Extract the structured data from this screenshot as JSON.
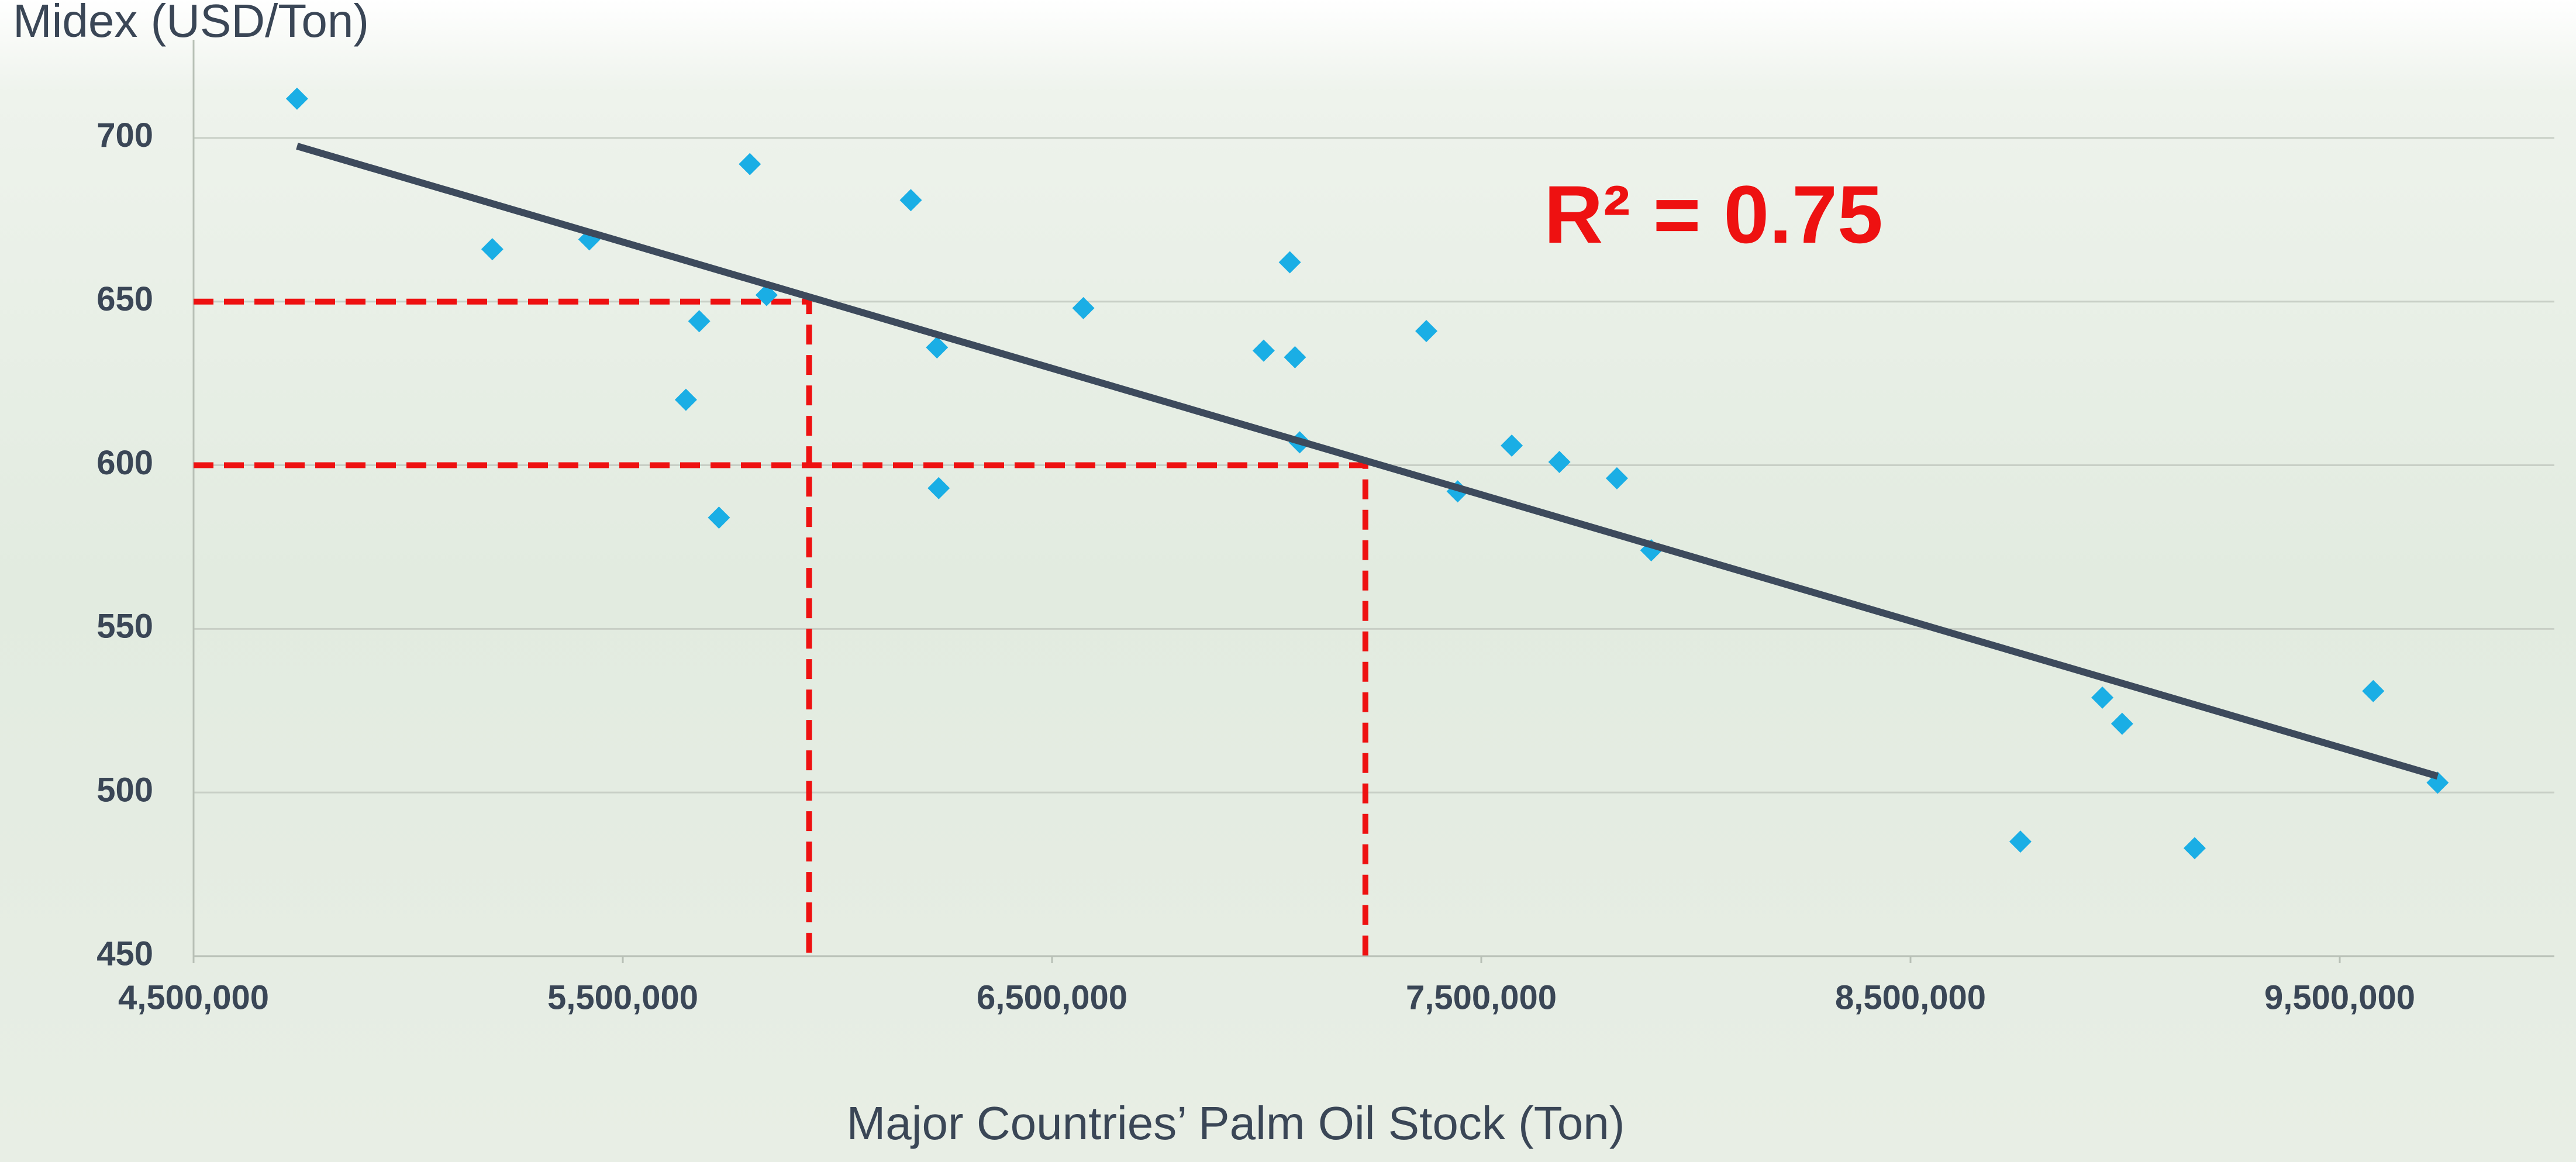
{
  "chart_data": {
    "type": "scatter",
    "y_axis_title": "Midex (USD/Ton)",
    "x_axis_title": "Major Countries’ Palm Oil Stock (Ton)",
    "annotation": "R² = 0.75",
    "x": [
      4741000,
      5196000,
      5422000,
      5678000,
      5647000,
      5724000,
      5796000,
      5835000,
      6171000,
      6232000,
      6236000,
      6573000,
      6993000,
      7054000,
      7066000,
      7077000,
      7372000,
      7445000,
      7571000,
      7682000,
      7816000,
      7896000,
      8756000,
      8947000,
      8993000,
      9162000,
      9578000,
      9728000
    ],
    "values": [
      712,
      666,
      669,
      644,
      620,
      584,
      692,
      652,
      681,
      636,
      593,
      648,
      635,
      662,
      633,
      607,
      641,
      592,
      606,
      601,
      596,
      574,
      485,
      529,
      521,
      483,
      531,
      503
    ],
    "color": "#1aaee5",
    "trendline": {
      "x": [
        4741000,
        9728000
      ],
      "y": [
        697.5,
        505
      ],
      "color": "#3d4a5c"
    },
    "reference_lines": {
      "x": [
        5934000,
        7230000
      ],
      "y": [
        650,
        600
      ],
      "color": "#ee1111"
    },
    "annotation_color": "#ee1111",
    "xlim": [
      4500000,
      10000000
    ],
    "xticks": [
      {
        "value": 4500000,
        "label": "4,500,000"
      },
      {
        "value": 5500000,
        "label": "5,500,000"
      },
      {
        "value": 6500000,
        "label": "6,500,000"
      },
      {
        "value": 7500000,
        "label": "7,500,000"
      },
      {
        "value": 8500000,
        "label": "8,500,000"
      },
      {
        "value": 9500000,
        "label": "9,500,000"
      }
    ],
    "ylim": [
      450,
      730
    ],
    "yticks": [
      450,
      500,
      550,
      600,
      650,
      700
    ],
    "grid": true
  }
}
